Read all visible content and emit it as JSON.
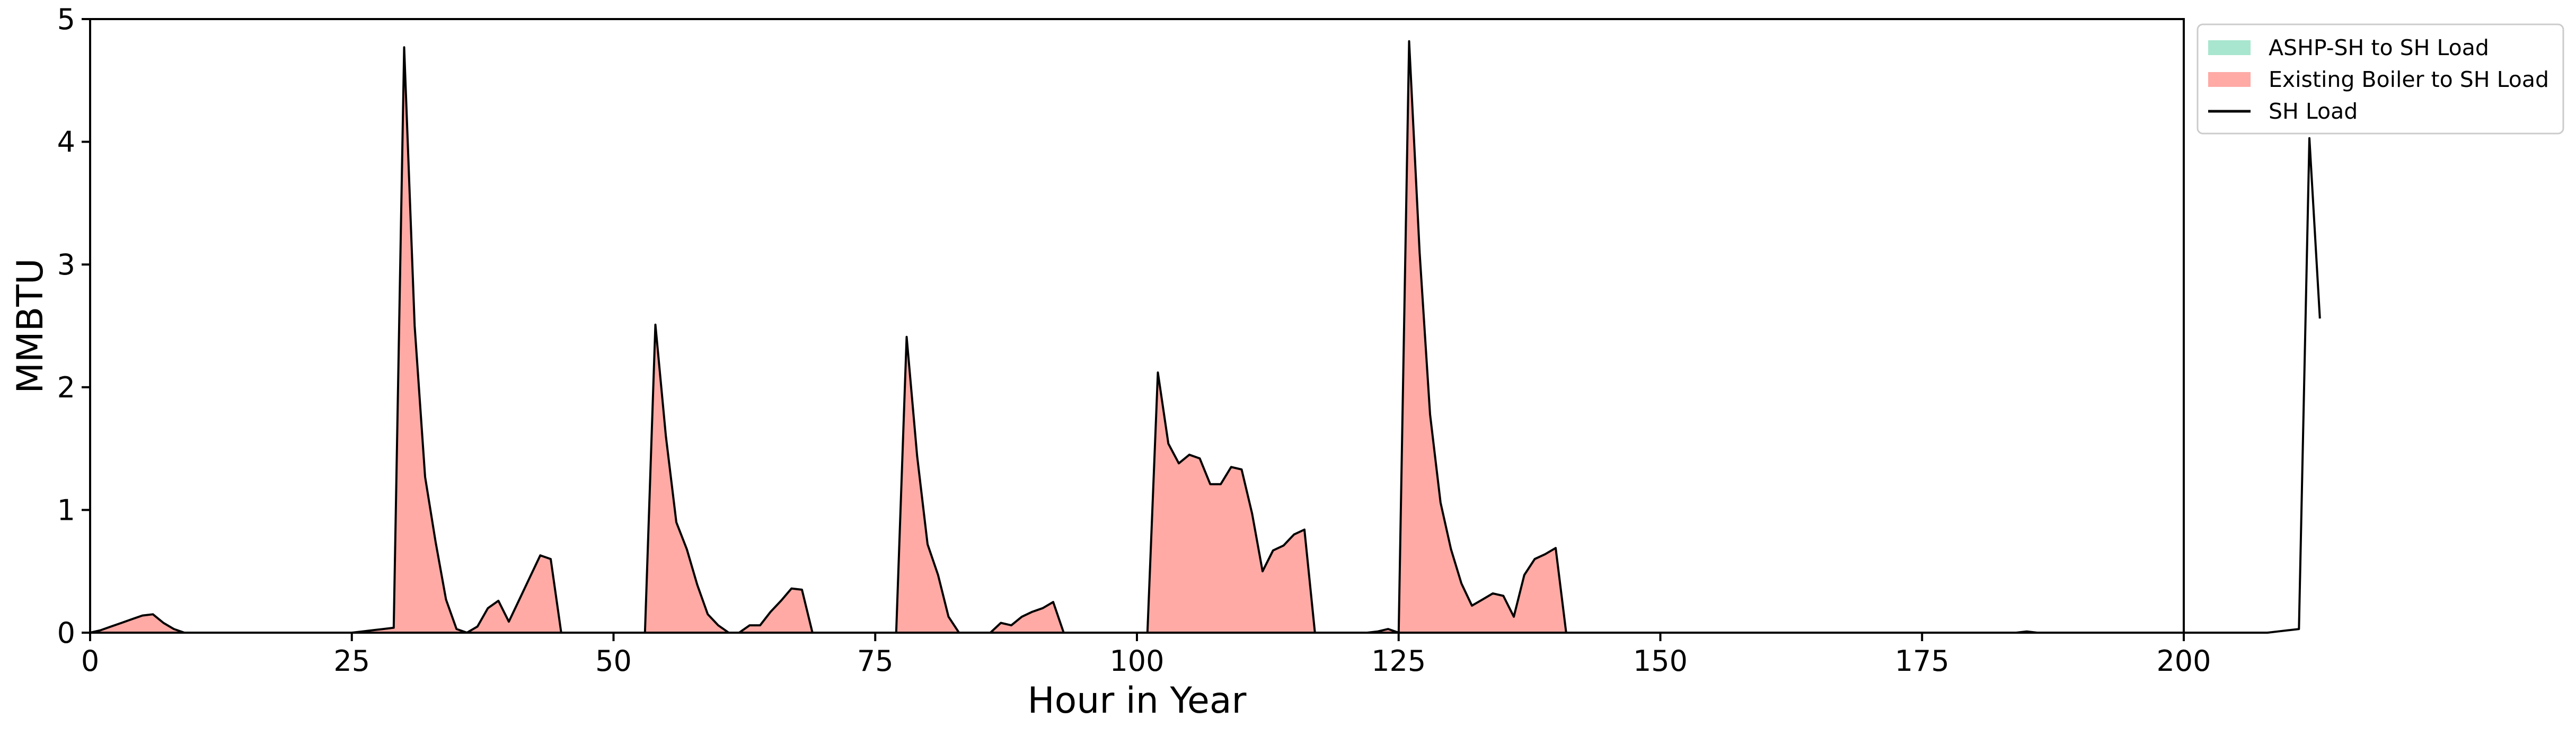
{
  "chart_data": {
    "type": "area",
    "xlabel": "Hour in Year",
    "ylabel": "MMBTU",
    "xlim": [
      0,
      200
    ],
    "ylim": [
      0,
      5
    ],
    "xticks": [
      0,
      25,
      50,
      75,
      100,
      125,
      150,
      175,
      200
    ],
    "yticks": [
      0,
      1,
      2,
      3,
      4,
      5
    ],
    "grid": false,
    "legend_position": "outside-top-right",
    "colors": {
      "ashp": "#a8e6cf",
      "boiler": "#ffaaa5",
      "load_line": "#000000"
    },
    "series": [
      {
        "name": "ASHP-SH to SH Load",
        "kind": "stacked-area",
        "values": [
          0,
          0,
          0,
          0,
          0,
          0,
          0,
          0,
          0,
          0,
          0,
          0,
          0,
          0,
          0,
          0,
          0,
          0,
          0,
          0,
          0,
          0,
          0,
          0,
          0,
          0,
          0,
          0,
          0,
          0,
          0,
          0,
          0,
          0,
          0,
          0,
          0,
          0,
          0,
          0,
          0,
          0,
          0,
          0,
          0,
          0,
          0,
          0,
          0,
          0,
          0,
          0,
          0,
          0,
          0,
          0,
          0,
          0,
          0,
          0,
          0,
          0,
          0,
          0,
          0,
          0,
          0,
          0,
          0,
          0,
          0,
          0,
          0,
          0,
          0,
          0,
          0,
          0,
          0,
          0,
          0,
          0,
          0,
          0,
          0,
          0,
          0,
          0,
          0,
          0,
          0,
          0,
          0,
          0,
          0,
          0,
          0,
          0,
          0,
          0,
          0,
          0,
          0,
          0,
          0,
          0,
          0,
          0,
          0,
          0,
          0,
          0,
          0,
          0,
          0,
          0,
          0,
          0,
          0,
          0,
          0,
          0,
          0,
          0,
          0,
          0,
          0,
          0,
          0,
          0,
          0,
          0,
          0,
          0,
          0,
          0,
          0,
          0,
          0,
          0,
          0,
          0,
          0,
          0,
          0,
          0,
          0,
          0,
          0,
          0,
          0,
          0,
          0,
          0,
          0,
          0,
          0,
          0,
          0,
          0,
          0,
          0,
          0,
          0,
          0,
          0,
          0,
          0,
          0,
          0,
          0,
          0,
          0,
          0,
          0,
          0,
          0,
          0,
          0,
          0,
          0,
          0,
          0,
          0,
          0,
          0,
          0,
          0,
          0,
          0,
          0,
          0,
          0,
          0,
          0,
          0,
          0,
          0,
          0,
          0
        ]
      },
      {
        "name": "Existing Boiler to SH Load",
        "kind": "stacked-area",
        "values": [
          0,
          0.02,
          0.05,
          0.08,
          0.11,
          0.14,
          0.15,
          0.08,
          0.03,
          0,
          0,
          0,
          0,
          0,
          0,
          0,
          0,
          0,
          0,
          0,
          0,
          0,
          0,
          0,
          0,
          0,
          0.01,
          0.02,
          0.03,
          0.04,
          4.77,
          2.5,
          1.27,
          0.74,
          0.27,
          0.03,
          0,
          0.05,
          0.2,
          0.26,
          0.09,
          0.27,
          0.45,
          0.63,
          0.6,
          0,
          0,
          0,
          0,
          0,
          0,
          0,
          0,
          0,
          2.51,
          1.6,
          0.9,
          0.68,
          0.39,
          0.15,
          0.06,
          0,
          0,
          0.06,
          0.06,
          0.17,
          0.26,
          0.36,
          0.35,
          0,
          0,
          0,
          0,
          0,
          0,
          0,
          0,
          0,
          2.41,
          1.44,
          0.72,
          0.47,
          0.13,
          0,
          0,
          0,
          0,
          0.08,
          0.06,
          0.13,
          0.17,
          0.2,
          0.25,
          0,
          0,
          0,
          0,
          0,
          0,
          0,
          0,
          0,
          2.12,
          1.54,
          1.38,
          1.45,
          1.42,
          1.21,
          1.21,
          1.35,
          1.33,
          0.97,
          0.5,
          0.67,
          0.71,
          0.8,
          0.84,
          0,
          0,
          0,
          0,
          0,
          0,
          0.01,
          0.03,
          0,
          4.82,
          3.1,
          1.78,
          1.06,
          0.68,
          0.4,
          0.22,
          0.27,
          0.32,
          0.3,
          0.13,
          0.47,
          0.6,
          0.64,
          0.69,
          0,
          0,
          0,
          0,
          0,
          0,
          0,
          0,
          0,
          0,
          0,
          0,
          0,
          0,
          0,
          0,
          0,
          0,
          0,
          0,
          0,
          0,
          0,
          0,
          0,
          0,
          0,
          0,
          0,
          0,
          0,
          0,
          0,
          0,
          0,
          0,
          0,
          0,
          0,
          0,
          0,
          0,
          0,
          0,
          0.01,
          0,
          0,
          0,
          0,
          0,
          0,
          0,
          0,
          0,
          0,
          0,
          0,
          0,
          0,
          0,
          0,
          0,
          0,
          0,
          0,
          0,
          0,
          0,
          0.01,
          0.02,
          0.03,
          4.03,
          2.56
        ]
      },
      {
        "name": "SH Load",
        "kind": "line",
        "values": [
          0,
          0.02,
          0.05,
          0.08,
          0.11,
          0.14,
          0.15,
          0.08,
          0.03,
          0,
          0,
          0,
          0,
          0,
          0,
          0,
          0,
          0,
          0,
          0,
          0,
          0,
          0,
          0,
          0,
          0,
          0.01,
          0.02,
          0.03,
          0.04,
          4.77,
          2.5,
          1.27,
          0.74,
          0.27,
          0.03,
          0,
          0.05,
          0.2,
          0.26,
          0.09,
          0.27,
          0.45,
          0.63,
          0.6,
          0,
          0,
          0,
          0,
          0,
          0,
          0,
          0,
          0,
          2.51,
          1.6,
          0.9,
          0.68,
          0.39,
          0.15,
          0.06,
          0,
          0,
          0.06,
          0.06,
          0.17,
          0.26,
          0.36,
          0.35,
          0,
          0,
          0,
          0,
          0,
          0,
          0,
          0,
          0,
          2.41,
          1.44,
          0.72,
          0.47,
          0.13,
          0,
          0,
          0,
          0,
          0.08,
          0.06,
          0.13,
          0.17,
          0.2,
          0.25,
          0,
          0,
          0,
          0,
          0,
          0,
          0,
          0,
          0,
          2.12,
          1.54,
          1.38,
          1.45,
          1.42,
          1.21,
          1.21,
          1.35,
          1.33,
          0.97,
          0.5,
          0.67,
          0.71,
          0.8,
          0.84,
          0,
          0,
          0,
          0,
          0,
          0,
          0.01,
          0.03,
          0,
          4.82,
          3.1,
          1.78,
          1.06,
          0.68,
          0.4,
          0.22,
          0.27,
          0.32,
          0.3,
          0.13,
          0.47,
          0.6,
          0.64,
          0.69,
          0,
          0,
          0,
          0,
          0,
          0,
          0,
          0,
          0,
          0,
          0,
          0,
          0,
          0,
          0,
          0,
          0,
          0,
          0,
          0,
          0,
          0,
          0,
          0,
          0,
          0,
          0,
          0,
          0,
          0,
          0,
          0,
          0,
          0,
          0,
          0,
          0,
          0,
          0,
          0,
          0,
          0,
          0,
          0,
          0.01,
          0,
          0,
          0,
          0,
          0,
          0,
          0,
          0,
          0,
          0,
          0,
          0,
          0,
          0,
          0,
          0,
          0,
          0,
          0,
          0,
          0,
          0,
          0,
          0.01,
          0.02,
          0.03,
          4.03,
          2.56
        ]
      }
    ]
  }
}
